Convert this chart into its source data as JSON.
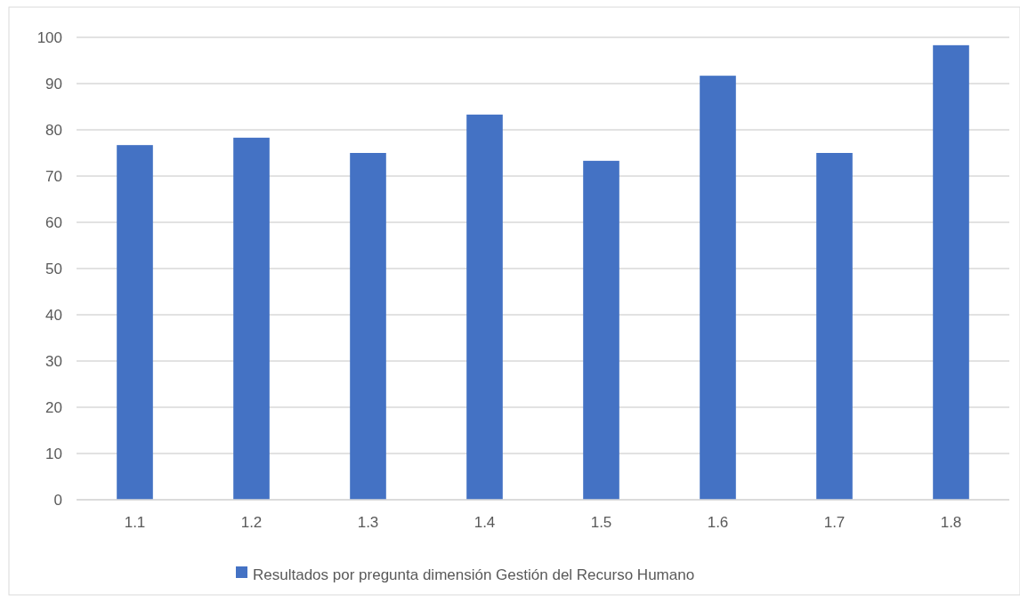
{
  "chart_data": {
    "type": "bar",
    "categories": [
      "1.1",
      "1.2",
      "1.3",
      "1.4",
      "1.5",
      "1.6",
      "1.7",
      "1.8"
    ],
    "series": [
      {
        "name": "Resultados por pregunta dimensión Gestión del Recurso Humano",
        "color": "#4472c4",
        "values": [
          76.7,
          78.3,
          75,
          83.3,
          73.3,
          91.7,
          75,
          98.3
        ]
      }
    ],
    "ylim": [
      0,
      100
    ],
    "yticks": [
      0,
      10,
      20,
      30,
      40,
      50,
      60,
      70,
      80,
      90,
      100
    ],
    "grid": "y",
    "legend": "bottom"
  }
}
